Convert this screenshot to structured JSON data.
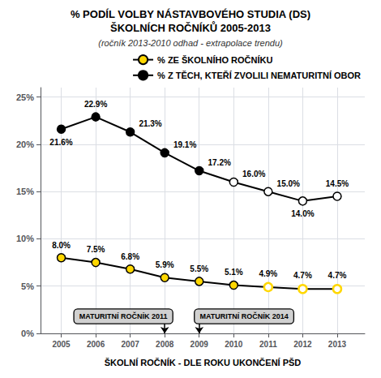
{
  "chart_data": {
    "type": "line",
    "title": [
      "% PODÍL VOLBY NÁSTAVBOVÉHO STUDIA (DS)",
      "ŠKOLNÍCH ROČNÍKŮ 2005-2013"
    ],
    "subtitle": "(ročník 2013-2010 odhad - extrapolace trendu)",
    "xlabel": "ŠKOLNÍ ROČNÍK - DLE ROKU UKONČENÍ PŠD",
    "x": [
      2005,
      2006,
      2007,
      2008,
      2009,
      2010,
      2011,
      2012,
      2013
    ],
    "series": [
      {
        "name": "% ZE ŠKOLNÍHO ROČNÍKU",
        "color": "#FFD700",
        "marker": "circle",
        "line_style": "solid",
        "values": [
          8.0,
          7.5,
          6.8,
          5.9,
          5.5,
          5.1,
          4.9,
          4.7,
          4.7
        ],
        "value_labels": [
          "8.0%",
          "7.5%",
          "6.8%",
          "5.9%",
          "5.5%",
          "5.1%",
          "4.9%",
          "4.7%",
          "4.7%"
        ],
        "filled": [
          true,
          true,
          true,
          true,
          true,
          true,
          false,
          false,
          false
        ]
      },
      {
        "name": "% Z TĚCH, KTEŘÍ ZVOLILI NEMATURITNÍ OBOR",
        "color": "#000000",
        "marker": "circle",
        "line_style": "solid",
        "values": [
          21.6,
          22.9,
          21.3,
          19.1,
          17.2,
          16.0,
          15.0,
          14.0,
          14.5
        ],
        "value_labels": [
          "21.6%",
          "22.9%",
          "21.3%",
          "19.1%",
          "17.2%",
          "16.0%",
          "15.0%",
          "14.0%",
          "14.5%"
        ],
        "filled": [
          true,
          true,
          true,
          true,
          true,
          false,
          false,
          false,
          false
        ]
      }
    ],
    "xlim": [
      2004.4,
      2013.8
    ],
    "xticks": [
      2005,
      2006,
      2007,
      2008,
      2009,
      2010,
      2011,
      2012,
      2013
    ],
    "ylim": [
      0,
      26
    ],
    "yticks": [
      {
        "value": 0,
        "label": "0%"
      },
      {
        "value": 5,
        "label": "5%"
      },
      {
        "value": 10,
        "label": "10%"
      },
      {
        "value": 15,
        "label": "15%"
      },
      {
        "value": 20,
        "label": "20%"
      },
      {
        "value": 25,
        "label": "25%"
      }
    ],
    "annotations": [
      {
        "text": "MATURITNÍ ROČNÍK 2011",
        "x": 2006.8,
        "y": 1.8,
        "arrow_x": 2008.0,
        "arrow_y": 0.0
      },
      {
        "text": "MATURITNÍ ROČNÍK 2014",
        "x": 2010.3,
        "y": 1.8,
        "arrow_x": 2009.0,
        "arrow_y": 0.0
      }
    ],
    "data_labels": true,
    "grid": true,
    "legend": "upper right"
  }
}
